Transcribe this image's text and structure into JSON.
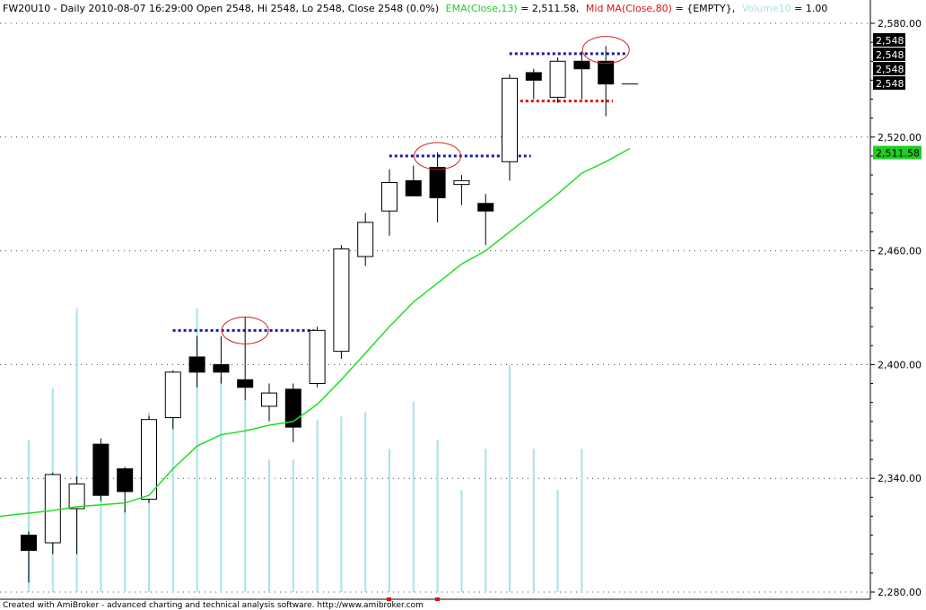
{
  "header": {
    "symbol_info": "FW20U10 - Daily 2010-08-07 16:29:00 Open 2548, Hi 2548, Lo 2548, Close 2548 (0.0%)",
    "ema_label": "EMA(Close,13)",
    "ema_value": " = 2,511.58,",
    "ma_label": "Mid MA(Close,80)",
    "ma_value": " = {EMPTY},",
    "volume_label": "Volume10",
    "volume_value": " = 1.00"
  },
  "footer": {
    "credit": "Created with AmiBroker - advanced charting and technical analysis software. http://www.amibroker.com"
  },
  "colors": {
    "ema_line": "#22dd22",
    "volume_bars": "#a6e3ea",
    "resistance_line": "#1a1aa8",
    "support_line": "#dd1111",
    "highlight_ellipse": "#cc2222",
    "price_tag_bg": "#000000",
    "ema_tag_bg": "#22cc22"
  },
  "chart_data": {
    "type": "candlestick",
    "ylim": [
      2280,
      2580
    ],
    "y_ticks": [
      "2,580.00",
      "2,520.00",
      "2,460.00",
      "2,400.00",
      "2,340.00",
      "2,280.00"
    ],
    "y_tick_values": [
      2580,
      2520,
      2460,
      2400,
      2340,
      2280
    ],
    "grid": true,
    "candles": [
      {
        "open": 2310,
        "high": 2312,
        "low": 2285,
        "close": 2302
      },
      {
        "open": 2306,
        "high": 2343,
        "low": 2300,
        "close": 2342
      },
      {
        "open": 2324,
        "high": 2341,
        "low": 2300,
        "close": 2337
      },
      {
        "open": 2358,
        "high": 2361,
        "low": 2328,
        "close": 2331
      },
      {
        "open": 2345,
        "high": 2346,
        "low": 2322,
        "close": 2333
      },
      {
        "open": 2329,
        "high": 2373,
        "low": 2327,
        "close": 2371
      },
      {
        "open": 2372,
        "high": 2397,
        "low": 2366,
        "close": 2396
      },
      {
        "open": 2404,
        "high": 2415,
        "low": 2388,
        "close": 2396
      },
      {
        "open": 2400,
        "high": 2415,
        "low": 2390,
        "close": 2396
      },
      {
        "open": 2392,
        "high": 2425,
        "low": 2381,
        "close": 2388
      },
      {
        "open": 2378,
        "high": 2390,
        "low": 2370,
        "close": 2385
      },
      {
        "open": 2387,
        "high": 2390,
        "low": 2359,
        "close": 2367
      },
      {
        "open": 2390,
        "high": 2420,
        "low": 2388,
        "close": 2418
      },
      {
        "open": 2407,
        "high": 2463,
        "low": 2403,
        "close": 2461
      },
      {
        "open": 2457,
        "high": 2480,
        "low": 2452,
        "close": 2475
      },
      {
        "open": 2481,
        "high": 2503,
        "low": 2468,
        "close": 2496
      },
      {
        "open": 2497,
        "high": 2505,
        "low": 2489,
        "close": 2489
      },
      {
        "open": 2504,
        "high": 2512,
        "low": 2475,
        "close": 2488
      },
      {
        "open": 2495,
        "high": 2500,
        "low": 2484,
        "close": 2497
      },
      {
        "open": 2485,
        "high": 2490,
        "low": 2463,
        "close": 2481
      },
      {
        "open": 2507,
        "high": 2553,
        "low": 2497,
        "close": 2551
      },
      {
        "open": 2554,
        "high": 2556,
        "low": 2540,
        "close": 2550
      },
      {
        "open": 2541,
        "high": 2562,
        "low": 2538,
        "close": 2560
      },
      {
        "open": 2560,
        "high": 2565,
        "low": 2540,
        "close": 2556
      },
      {
        "open": 2560,
        "high": 2568,
        "low": 2531,
        "close": 2548
      },
      {
        "open": 2548,
        "high": 2548,
        "low": 2548,
        "close": 2548
      }
    ],
    "ema13": [
      2320,
      2323,
      2325,
      2326,
      2327,
      2331,
      2345,
      2357,
      2363,
      2365,
      2368,
      2370,
      2379,
      2392,
      2406,
      2420,
      2433,
      2443,
      2453,
      2460,
      2470,
      2480,
      2490,
      2501,
      2507,
      2514
    ],
    "volume": [
      1.0,
      1.34,
      1.86,
      0.8,
      0.54,
      1.18,
      1.18,
      1.86,
      1.41,
      1.25,
      0.87,
      0.87,
      1.13,
      1.15,
      1.18,
      0.94,
      1.25,
      1.0,
      0.67,
      0.94,
      1.49,
      0.94,
      0.67,
      0.94,
      1.0,
      1.0
    ],
    "volume_visible_count": 24,
    "resistance_levels": [
      {
        "level": 2418,
        "from_index": 7,
        "to_index": 13,
        "color": "blue"
      },
      {
        "level": 2510,
        "from_index": 16,
        "to_index": 22,
        "color": "blue"
      },
      {
        "level": 2564,
        "from_index": 21,
        "to_index": 26,
        "color": "blue"
      }
    ],
    "support_levels": [
      {
        "level": 2539,
        "from_index": 21,
        "to_index": 25,
        "color": "red"
      }
    ],
    "highlights": [
      {
        "index": 9,
        "price": 2418
      },
      {
        "index": 17,
        "price": 2510
      },
      {
        "index": 24,
        "price": 2566
      }
    ],
    "price_tags": [
      "2,548",
      "2,548",
      "2,548",
      "2,548"
    ],
    "ema_tag": "2,511.58"
  }
}
